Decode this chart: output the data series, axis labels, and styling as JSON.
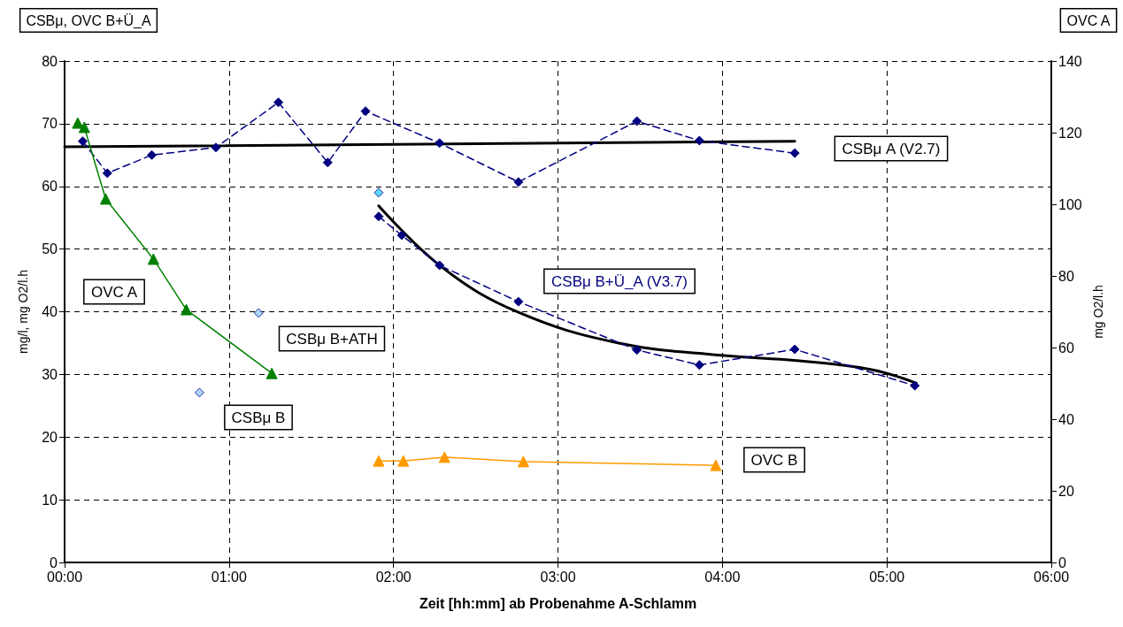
{
  "chart_data": {
    "type": "line",
    "xlabel": "Zeit [hh:mm] ab Probenahme A-Schlamm",
    "ylabel": "mg/l, mg O2/l.h",
    "y2label": "mg O2/l.h",
    "annotations": [
      "CSBμ, OVC B+Ü_A",
      "OVC A"
    ],
    "xlim": [
      0,
      6
    ],
    "xticks": [
      {
        "value": 0,
        "label": "00:00"
      },
      {
        "value": 1,
        "label": "01:00"
      },
      {
        "value": 2,
        "label": "02:00"
      },
      {
        "value": 3,
        "label": "03:00"
      },
      {
        "value": 4,
        "label": "04:00"
      },
      {
        "value": 5,
        "label": "05:00"
      },
      {
        "value": 6,
        "label": "06:00"
      }
    ],
    "ylim": [
      0,
      80
    ],
    "yticks": [
      0,
      10,
      20,
      30,
      40,
      50,
      60,
      70,
      80
    ],
    "y2lim": [
      0,
      140
    ],
    "y2ticks": [
      0,
      20,
      40,
      60,
      80,
      100,
      120,
      140
    ],
    "grid": true,
    "legend": false,
    "series": [
      {
        "name": "CSBμ A (V2.7)",
        "color": "#000080",
        "marker": "diamond",
        "line_style": "dashed",
        "x": [
          0.11,
          0.26,
          0.53,
          0.92,
          1.3,
          1.6,
          1.83,
          2.28,
          2.76,
          3.48,
          3.86,
          4.44
        ],
        "values": [
          67.2,
          62.1,
          65.0,
          66.2,
          73.4,
          63.8,
          72.0,
          66.9,
          60.7,
          70.4,
          67.3,
          65.3
        ]
      },
      {
        "type": "line",
        "color": "#000000",
        "marker": "none",
        "line_style": "solid",
        "x": [
          0,
          4.44
        ],
        "values": [
          66.3,
          67.2
        ]
      },
      {
        "name": "CSBμ B+Ü_A (V3.7)",
        "color": "#000080",
        "marker": "diamond",
        "line_style": "dashed",
        "x": [
          1.91,
          2.05,
          2.28,
          2.76,
          3.48,
          3.86,
          4.44,
          5.17
        ],
        "values": [
          55.2,
          52.2,
          47.4,
          41.6,
          33.9,
          31.5,
          34.0,
          28.2
        ]
      },
      {
        "type": "line",
        "color": "#000000",
        "marker": "none",
        "line_style": "solid",
        "x": [
          1.91,
          2.3,
          2.76,
          3.37,
          4.01,
          4.45,
          4.9,
          5.18
        ],
        "values": [
          56.9,
          47.0,
          39.9,
          35.0,
          33.0,
          32.2,
          30.8,
          28.6
        ]
      },
      {
        "name": "OVC A",
        "type": "line",
        "axis": "y2",
        "color": "#008000",
        "marker": "triangle",
        "line_style": "solid",
        "x": [
          0.08,
          0.12,
          0.25,
          0.54,
          0.74,
          1.26
        ],
        "values": [
          122.7,
          121.5,
          101.5,
          84.7,
          70.6,
          52.8
        ]
      },
      {
        "name": "OVC B",
        "type": "line",
        "color": "#ff9900",
        "marker": "triangle",
        "line_style": "solid",
        "x": [
          1.91,
          2.06,
          2.31,
          2.79,
          3.96
        ],
        "values": [
          16.2,
          16.2,
          16.8,
          16.1,
          15.5
        ]
      },
      {
        "name": "CSBμ B",
        "type": "scatter",
        "color": "#99ccff",
        "marker": "diamond",
        "x": [
          0.82
        ],
        "values": [
          27.1
        ]
      },
      {
        "name": "CSBμ B+ATH",
        "type": "scatter",
        "color": "#99ccff",
        "marker": "diamond",
        "x": [
          1.18
        ],
        "values": [
          39.8
        ]
      },
      {
        "type": "scatter",
        "color": "#33ccff",
        "marker": "diamond",
        "x": [
          1.91
        ],
        "values": [
          59.0
        ]
      }
    ]
  }
}
